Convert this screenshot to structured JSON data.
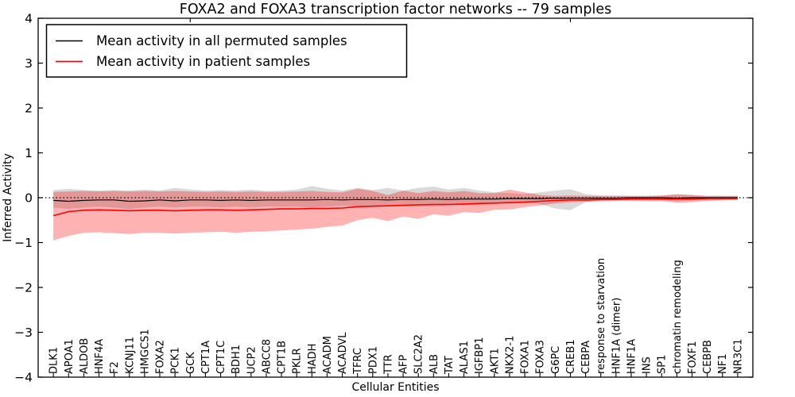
{
  "chart_data": {
    "type": "line",
    "title": "FOXA2 and FOXA3 transcription factor networks -- 79 samples",
    "xlabel": "Cellular Entities",
    "ylabel": "Inferred Activity",
    "xlim": [
      -1,
      46
    ],
    "ylim": [
      -4,
      4
    ],
    "grid": false,
    "legend_position": "upper left",
    "x_tick_label_rotation": 90,
    "categories": [
      "DLK1",
      "APOA1",
      "ALDOB",
      "HNF4A",
      "F2",
      "KCNJ11",
      "HMGCS1",
      "FOXA2",
      "PCK1",
      "GCK",
      "CPT1A",
      "CPT1C",
      "BDH1",
      "UCP2",
      "ABCC8",
      "CPT1B",
      "PKLR",
      "HADH",
      "ACADM",
      "ACADVL",
      "TFRC",
      "PDX1",
      "TTR",
      "AFP",
      "SLC2A2",
      "ALB",
      "TAT",
      "ALAS1",
      "IGFBP1",
      "AKT1",
      "NKX2-1",
      "FOXA1",
      "FOXA3",
      "G6PC",
      "CREB1",
      "CEBPA",
      "response to starvation",
      "HNF1A (dimer)",
      "HNF1A",
      "INS",
      "SP1",
      "chromatin remodeling",
      "FOXF1",
      "CEBPB",
      "NF1",
      "NR3C1"
    ],
    "y_ticks": {
      "values": [
        4,
        3,
        2,
        1,
        0,
        -1,
        -2,
        -3,
        -4
      ],
      "labels": [
        "4",
        "3",
        "2",
        "1",
        "0",
        "−1",
        "−2",
        "−3",
        "−4"
      ]
    },
    "top_tick_positions": [
      9,
      34
    ],
    "zero_line": {
      "y": 0,
      "style": "dotted",
      "color": "#000000"
    },
    "series": [
      {
        "name": "Mean activity in all permuted samples",
        "color": "#000000",
        "line_width": 1.2,
        "band_fill": "rgba(0,0,0,0.15)",
        "values": [
          -0.06,
          -0.08,
          -0.06,
          -0.05,
          -0.05,
          -0.08,
          -0.07,
          -0.05,
          -0.07,
          -0.05,
          -0.05,
          -0.06,
          -0.05,
          -0.06,
          -0.05,
          -0.05,
          -0.05,
          -0.05,
          -0.04,
          -0.05,
          -0.04,
          -0.04,
          -0.05,
          -0.04,
          -0.04,
          -0.03,
          -0.04,
          -0.03,
          -0.03,
          -0.03,
          -0.02,
          -0.02,
          -0.02,
          -0.01,
          -0.01,
          -0.01,
          -0.01,
          -0.01,
          0.0,
          0.0,
          0.0,
          -0.01,
          0.0,
          0.0,
          0.0,
          0.0
        ],
        "band_upper": [
          0.17,
          0.2,
          0.17,
          0.16,
          0.17,
          0.16,
          0.18,
          0.16,
          0.22,
          0.18,
          0.16,
          0.17,
          0.16,
          0.18,
          0.15,
          0.16,
          0.18,
          0.26,
          0.2,
          0.16,
          0.22,
          0.17,
          0.22,
          0.16,
          0.22,
          0.25,
          0.18,
          0.22,
          0.16,
          0.12,
          0.1,
          0.08,
          0.12,
          0.16,
          0.19,
          0.08,
          0.05,
          0.05,
          0.04,
          0.04,
          0.05,
          0.07,
          0.06,
          0.04,
          0.04,
          0.04
        ],
        "band_lower": [
          -0.22,
          -0.25,
          -0.22,
          -0.2,
          -0.22,
          -0.25,
          -0.22,
          -0.2,
          -0.22,
          -0.2,
          -0.2,
          -0.22,
          -0.2,
          -0.22,
          -0.2,
          -0.2,
          -0.2,
          -0.22,
          -0.2,
          -0.18,
          -0.2,
          -0.18,
          -0.2,
          -0.17,
          -0.18,
          -0.2,
          -0.17,
          -0.18,
          -0.15,
          -0.12,
          -0.1,
          -0.09,
          -0.14,
          -0.24,
          -0.28,
          -0.1,
          -0.06,
          -0.05,
          -0.05,
          -0.04,
          -0.05,
          -0.08,
          -0.06,
          -0.05,
          -0.04,
          -0.04
        ]
      },
      {
        "name": "Mean activity in patient samples",
        "color": "#ff0000",
        "line_width": 1.6,
        "band_fill": "rgba(255,0,0,0.30)",
        "values": [
          -0.4,
          -0.31,
          -0.28,
          -0.27,
          -0.28,
          -0.29,
          -0.28,
          -0.28,
          -0.29,
          -0.28,
          -0.27,
          -0.27,
          -0.28,
          -0.27,
          -0.26,
          -0.25,
          -0.25,
          -0.24,
          -0.24,
          -0.23,
          -0.2,
          -0.19,
          -0.18,
          -0.17,
          -0.16,
          -0.15,
          -0.15,
          -0.14,
          -0.13,
          -0.12,
          -0.11,
          -0.1,
          -0.08,
          -0.06,
          -0.05,
          -0.05,
          -0.04,
          -0.04,
          -0.03,
          -0.03,
          -0.03,
          -0.03,
          -0.03,
          -0.02,
          -0.02,
          -0.02
        ],
        "band_upper": [
          0.13,
          0.14,
          0.15,
          0.14,
          0.15,
          0.14,
          0.15,
          0.14,
          0.15,
          0.14,
          0.13,
          0.14,
          0.13,
          0.14,
          0.13,
          0.13,
          0.14,
          0.15,
          0.13,
          0.12,
          0.2,
          0.15,
          0.06,
          0.16,
          0.1,
          0.15,
          0.12,
          0.15,
          0.1,
          0.1,
          0.18,
          0.12,
          0.06,
          0.04,
          0.05,
          0.04,
          0.04,
          0.04,
          0.04,
          0.04,
          0.05,
          0.08,
          0.06,
          0.04,
          0.04,
          0.04
        ],
        "band_lower": [
          -0.95,
          -0.85,
          -0.78,
          -0.77,
          -0.79,
          -0.81,
          -0.78,
          -0.78,
          -0.8,
          -0.78,
          -0.77,
          -0.76,
          -0.78,
          -0.76,
          -0.75,
          -0.73,
          -0.71,
          -0.69,
          -0.65,
          -0.62,
          -0.5,
          -0.45,
          -0.52,
          -0.42,
          -0.47,
          -0.37,
          -0.4,
          -0.32,
          -0.34,
          -0.27,
          -0.26,
          -0.21,
          -0.17,
          -0.13,
          -0.1,
          -0.09,
          -0.08,
          -0.07,
          -0.07,
          -0.08,
          -0.08,
          -0.11,
          -0.1,
          -0.07,
          -0.06,
          -0.05
        ]
      }
    ]
  }
}
